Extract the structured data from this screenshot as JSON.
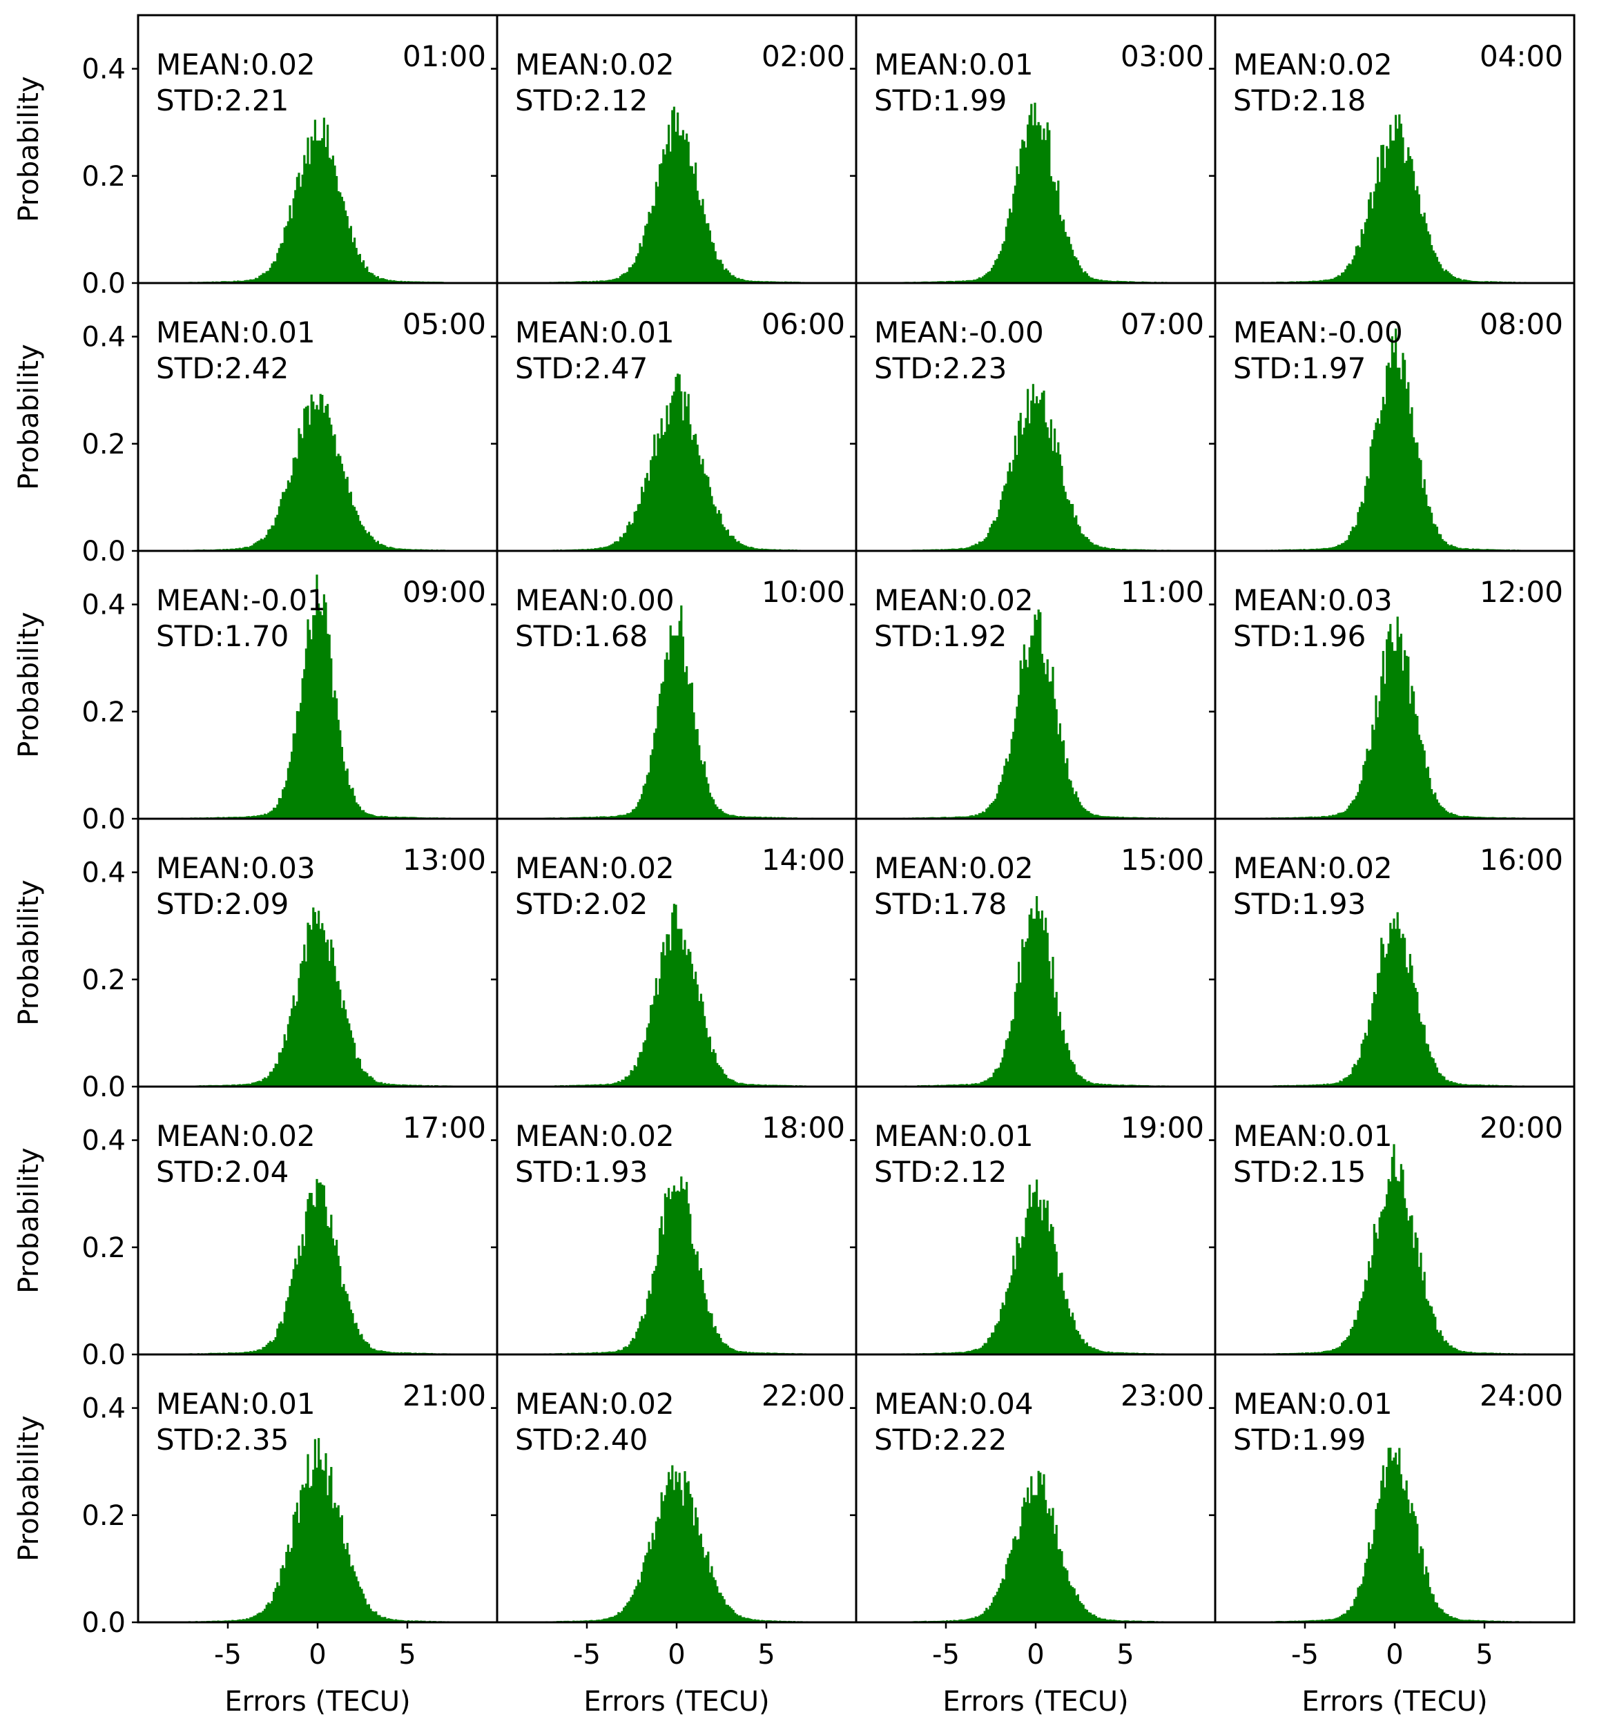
{
  "chart_data": {
    "type": "bar",
    "layout": "grid of 6 rows x 4 columns, shared axes",
    "xlabel": "Errors (TECU)",
    "ylabel": "Probability",
    "xlim": [
      -10,
      10
    ],
    "ylim": [
      0,
      0.5
    ],
    "xticks": [
      -5,
      0,
      5
    ],
    "xtick_labels": [
      "-5",
      "0",
      "5"
    ],
    "yticks": [
      0.0,
      0.2,
      0.4
    ],
    "ytick_labels": [
      "0.0",
      "0.2",
      "0.4"
    ],
    "bar_color": "#008000",
    "grid": false,
    "panels": [
      {
        "label": "01:00",
        "mean_text": "MEAN:0.02",
        "std_text": "STD:2.21",
        "mean": 0.02,
        "std": 2.21,
        "peak": 0.28
      },
      {
        "label": "02:00",
        "mean_text": "MEAN:0.02",
        "std_text": "STD:2.12",
        "mean": 0.02,
        "std": 2.12,
        "peak": 0.29
      },
      {
        "label": "03:00",
        "mean_text": "MEAN:0.01",
        "std_text": "STD:1.99",
        "mean": 0.01,
        "std": 1.99,
        "peak": 0.31
      },
      {
        "label": "04:00",
        "mean_text": "MEAN:0.02",
        "std_text": "STD:2.18",
        "mean": 0.02,
        "std": 2.18,
        "peak": 0.28
      },
      {
        "label": "05:00",
        "mean_text": "MEAN:0.01",
        "std_text": "STD:2.42",
        "mean": 0.01,
        "std": 2.42,
        "peak": 0.27
      },
      {
        "label": "06:00",
        "mean_text": "MEAN:0.01",
        "std_text": "STD:2.47",
        "mean": 0.01,
        "std": 2.47,
        "peak": 0.29
      },
      {
        "label": "07:00",
        "mean_text": "MEAN:-0.00",
        "std_text": "STD:2.23",
        "mean": -0.0,
        "std": 2.23,
        "peak": 0.29
      },
      {
        "label": "08:00",
        "mean_text": "MEAN:-0.00",
        "std_text": "STD:1.97",
        "mean": -0.0,
        "std": 1.97,
        "peak": 0.36
      },
      {
        "label": "09:00",
        "mean_text": "MEAN:-0.01",
        "std_text": "STD:1.70",
        "mean": -0.01,
        "std": 1.7,
        "peak": 0.4
      },
      {
        "label": "10:00",
        "mean_text": "MEAN:0.00",
        "std_text": "STD:1.68",
        "mean": 0.0,
        "std": 1.68,
        "peak": 0.36
      },
      {
        "label": "11:00",
        "mean_text": "MEAN:0.02",
        "std_text": "STD:1.92",
        "mean": 0.02,
        "std": 1.92,
        "peak": 0.36
      },
      {
        "label": "12:00",
        "mean_text": "MEAN:0.03",
        "std_text": "STD:1.96",
        "mean": 0.03,
        "std": 1.96,
        "peak": 0.33
      },
      {
        "label": "13:00",
        "mean_text": "MEAN:0.03",
        "std_text": "STD:2.09",
        "mean": 0.03,
        "std": 2.09,
        "peak": 0.31
      },
      {
        "label": "14:00",
        "mean_text": "MEAN:0.02",
        "std_text": "STD:2.02",
        "mean": 0.02,
        "std": 2.02,
        "peak": 0.31
      },
      {
        "label": "15:00",
        "mean_text": "MEAN:0.02",
        "std_text": "STD:1.78",
        "mean": 0.02,
        "std": 1.78,
        "peak": 0.33
      },
      {
        "label": "16:00",
        "mean_text": "MEAN:0.02",
        "std_text": "STD:1.93",
        "mean": 0.02,
        "std": 1.93,
        "peak": 0.31
      },
      {
        "label": "17:00",
        "mean_text": "MEAN:0.02",
        "std_text": "STD:2.04",
        "mean": 0.02,
        "std": 2.04,
        "peak": 0.29
      },
      {
        "label": "18:00",
        "mean_text": "MEAN:0.02",
        "std_text": "STD:1.93",
        "mean": 0.02,
        "std": 1.93,
        "peak": 0.32
      },
      {
        "label": "19:00",
        "mean_text": "MEAN:0.01",
        "std_text": "STD:2.12",
        "mean": 0.01,
        "std": 2.12,
        "peak": 0.29
      },
      {
        "label": "20:00",
        "mean_text": "MEAN:0.01",
        "std_text": "STD:2.15",
        "mean": 0.01,
        "std": 2.15,
        "peak": 0.34
      },
      {
        "label": "21:00",
        "mean_text": "MEAN:0.01",
        "std_text": "STD:2.35",
        "mean": 0.01,
        "std": 2.35,
        "peak": 0.3
      },
      {
        "label": "22:00",
        "mean_text": "MEAN:0.02",
        "std_text": "STD:2.40",
        "mean": 0.02,
        "std": 2.4,
        "peak": 0.26
      },
      {
        "label": "23:00",
        "mean_text": "MEAN:0.04",
        "std_text": "STD:2.22",
        "mean": 0.04,
        "std": 2.22,
        "peak": 0.25
      },
      {
        "label": "24:00",
        "mean_text": "MEAN:0.01",
        "std_text": "STD:1.99",
        "mean": 0.01,
        "std": 1.99,
        "peak": 0.31
      }
    ]
  }
}
